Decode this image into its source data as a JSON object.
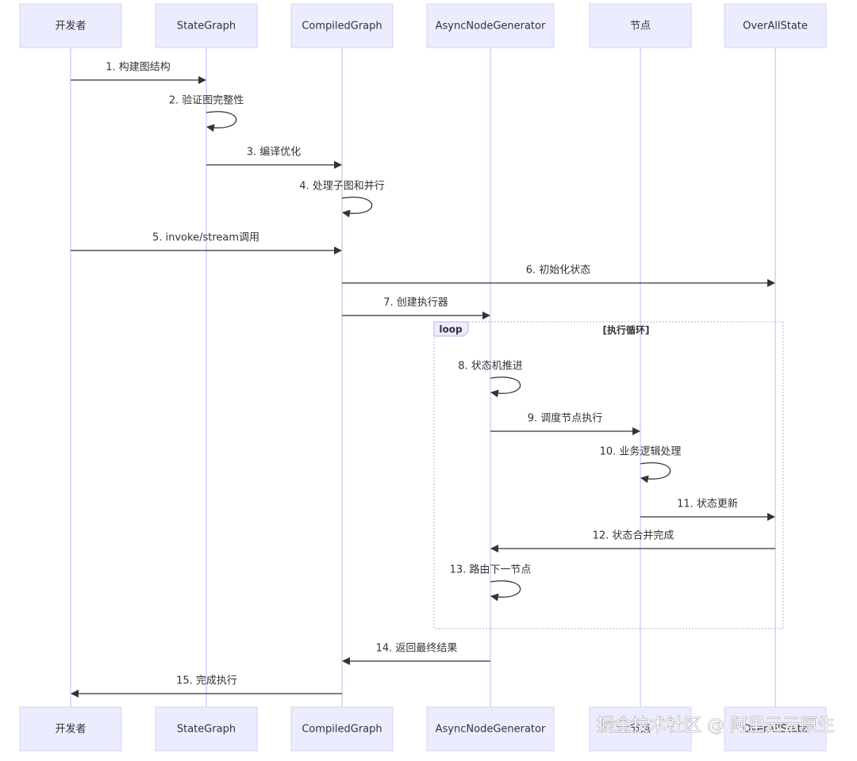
{
  "participants": [
    "开发者",
    "StateGraph",
    "CompiledGraph",
    "AsyncNodeGenerator",
    "节点",
    "OverAllState"
  ],
  "messages": [
    {
      "label": "1. 构建图结构"
    },
    {
      "label": "2. 验证图完整性"
    },
    {
      "label": "3. 编译优化"
    },
    {
      "label": "4. 处理子图和并行"
    },
    {
      "label": "5. invoke/stream调用"
    },
    {
      "label": "6. 初始化状态"
    },
    {
      "label": "7. 创建执行器"
    },
    {
      "label": "8. 状态机推进"
    },
    {
      "label": "9. 调度节点执行"
    },
    {
      "label": "10. 业务逻辑处理"
    },
    {
      "label": "11. 状态更新"
    },
    {
      "label": "12. 状态合并完成"
    },
    {
      "label": "13. 路由下一节点"
    },
    {
      "label": "14. 返回最终结果"
    },
    {
      "label": "15. 完成执行"
    }
  ],
  "loop": {
    "keyword": "loop",
    "title": "[执行循环]"
  },
  "watermark": "掘金技术社区 @ 阿里云云原生"
}
